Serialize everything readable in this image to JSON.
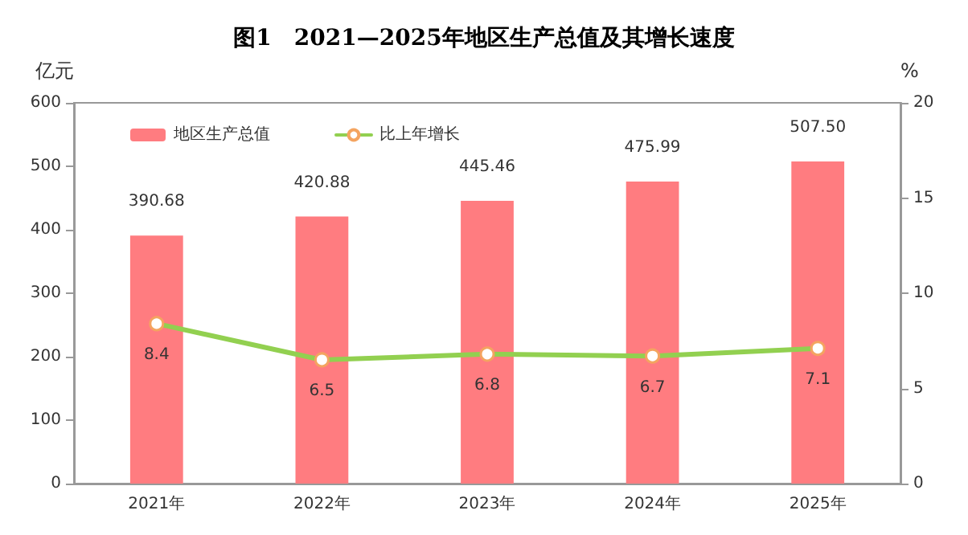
{
  "chart_data": {
    "type": "bar",
    "title": "图1　2021—2025年地区生产总值及其增长速度",
    "ylabel": "亿元",
    "y2label": "%",
    "categories": [
      "2021年",
      "2022年",
      "2023年",
      "2024年",
      "2025年"
    ],
    "series": [
      {
        "name": "地区生产总值",
        "color": "#ff7c80",
        "values": [
          390.68,
          420.88,
          445.46,
          475.99,
          507.5
        ],
        "value_labels": [
          "390.68",
          "420.88",
          "445.46",
          "475.99",
          "507.50"
        ]
      },
      {
        "name": "比上年增长",
        "type": "line",
        "axis": "y2",
        "color": "#92d050",
        "values": [
          8.4,
          6.5,
          6.8,
          6.7,
          7.1
        ],
        "value_labels": [
          "8.4",
          "6.5",
          "6.8",
          "6.7",
          "7.1"
        ]
      }
    ],
    "ylim": [
      0,
      600
    ],
    "yticks": [
      0,
      100,
      200,
      300,
      400,
      500,
      600
    ],
    "y2lim": [
      0,
      20
    ],
    "y2ticks": [
      0,
      5,
      10,
      15,
      20
    ],
    "grid": false,
    "legend": "top left",
    "marker": "circle",
    "line_style": "solid"
  }
}
